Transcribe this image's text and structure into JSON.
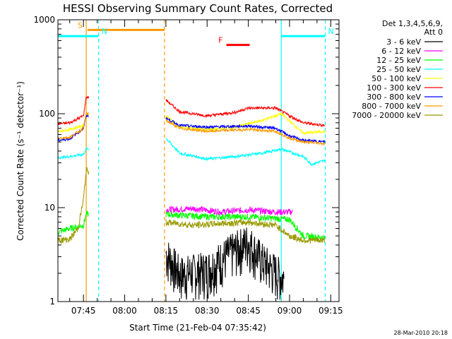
{
  "chart_data": {
    "type": "line",
    "title": "HESSI Observing Summary Count Rates, Corrected",
    "xlabel": "Start Time (21-Feb-04 07:35:42)",
    "ylabel": "Corrected Count Rate (s⁻¹ detector⁻¹)",
    "yscale": "log",
    "xlim": [
      "07:35:42",
      "09:18:00"
    ],
    "ylim": [
      1,
      1000
    ],
    "x_ticks": [
      "07:45",
      "08:00",
      "08:15",
      "08:30",
      "08:45",
      "09:00",
      "09:15"
    ],
    "y_ticks": [
      "1",
      "10",
      "100",
      "1000"
    ],
    "legend_header": [
      "Det 1,3,4,5,6,9,",
      "Att 0"
    ],
    "legend_position": "right",
    "series": [
      {
        "name": "3 - 6 keV",
        "color": "#000000",
        "x": [
          "07:35:42",
          "07:47:00",
          "08:15:00",
          "08:20:00",
          "08:30:00",
          "08:38:00",
          "08:45:00",
          "08:50:00",
          "08:58:00",
          "09:00:00"
        ],
        "values": [
          null,
          null,
          3.0,
          1.8,
          2.0,
          3.0,
          4.0,
          2.5,
          1.6,
          null
        ]
      },
      {
        "name": "6 - 12 keV",
        "color": "#ff00ff",
        "x": [
          "08:15:00",
          "08:25:00",
          "08:35:00",
          "08:45:00",
          "08:55:00",
          "09:01:00"
        ],
        "values": [
          9.5,
          9.8,
          9.0,
          9.5,
          9.0,
          9.0
        ]
      },
      {
        "name": "12 - 25 keV",
        "color": "#00ff00",
        "x": [
          "07:35:42",
          "07:40:00",
          "07:45:00",
          "07:46:00",
          "08:15:00",
          "08:30:00",
          "08:45:00",
          "09:00:00",
          "09:05:00",
          "09:13:00"
        ],
        "values": [
          5.5,
          6.0,
          6.5,
          8.5,
          8.5,
          8.0,
          8.0,
          7.5,
          5.0,
          4.8
        ]
      },
      {
        "name": "25 - 50 keV",
        "color": "#00ffff",
        "x": [
          "07:35:42",
          "07:40:00",
          "07:45:00",
          "07:46:00",
          "08:15:00",
          "08:20:00",
          "08:30:00",
          "08:40:00",
          "08:50:00",
          "08:57:00",
          "09:05:00",
          "09:08:00",
          "09:13:00"
        ],
        "values": [
          34,
          35,
          37,
          42,
          55,
          38,
          33,
          35,
          38,
          42,
          35,
          29,
          32
        ]
      },
      {
        "name": "50 - 100 keV",
        "color": "#ffff00",
        "x": [
          "07:35:42",
          "07:40:00",
          "07:45:00",
          "07:46:00",
          "08:15:00",
          "08:20:00",
          "08:30:00",
          "08:40:00",
          "08:50:00",
          "08:57:00",
          "09:05:00",
          "09:13:00"
        ],
        "values": [
          65,
          68,
          75,
          100,
          95,
          72,
          68,
          72,
          85,
          100,
          62,
          65
        ]
      },
      {
        "name": "100 - 300 keV",
        "color": "#ff0000",
        "x": [
          "07:35:42",
          "07:40:00",
          "07:45:00",
          "07:46:00",
          "08:15:00",
          "08:20:00",
          "08:30:00",
          "08:40:00",
          "08:45:00",
          "08:55:00",
          "09:00:00",
          "09:05:00",
          "09:13:00"
        ],
        "values": [
          78,
          80,
          95,
          150,
          140,
          105,
          95,
          103,
          115,
          115,
          95,
          80,
          75
        ]
      },
      {
        "name": "300 - 800 keV",
        "color": "#0000ff",
        "x": [
          "07:35:42",
          "07:40:00",
          "07:45:00",
          "07:46:00",
          "08:15:00",
          "08:20:00",
          "08:30:00",
          "08:45:00",
          "08:55:00",
          "09:00:00",
          "09:05:00",
          "09:13:00"
        ],
        "values": [
          52,
          54,
          70,
          95,
          90,
          75,
          72,
          74,
          70,
          58,
          52,
          50
        ]
      },
      {
        "name": "800 - 7000 keV",
        "color": "#ff9900",
        "x": [
          "07:35:42",
          "07:40:00",
          "07:45:00",
          "07:46:00",
          "08:15:00",
          "08:20:00",
          "08:30:00",
          "08:45:00",
          "08:55:00",
          "09:00:00",
          "09:05:00",
          "09:13:00"
        ],
        "values": [
          55,
          56,
          70,
          100,
          85,
          70,
          65,
          68,
          65,
          55,
          50,
          48
        ]
      },
      {
        "name": "7000 - 20000 keV",
        "color": "#999900",
        "x": [
          "07:35:42",
          "07:40:00",
          "07:43:00",
          "07:45:00",
          "07:46:00",
          "08:15:00",
          "08:25:00",
          "08:35:00",
          "08:45:00",
          "08:55:00",
          "09:00:00",
          "09:05:00",
          "09:13:00"
        ],
        "values": [
          4.5,
          4.6,
          6.0,
          12,
          25,
          7.0,
          6.5,
          6.8,
          7.0,
          6.5,
          5.0,
          4.5,
          4.5
        ]
      }
    ],
    "flag_bars": [
      {
        "label": "S",
        "color": "#ff9900",
        "start": "07:46:30",
        "end": "08:14:30",
        "level": 780
      },
      {
        "label": "N",
        "color": "#00ffff",
        "start": "07:35:42",
        "end": "07:50:30",
        "level": 670
      },
      {
        "label": "N",
        "color": "#00ffff",
        "start": "08:57:00",
        "end": "09:13:00",
        "level": 670
      },
      {
        "label": "F",
        "color": "#ff0000",
        "start": "08:37:00",
        "end": "08:45:30",
        "level": 540
      }
    ],
    "vertical_markers": [
      {
        "time": "07:46:00",
        "color": "#ff9900",
        "style": "solid"
      },
      {
        "time": "07:50:30",
        "color": "#00ffff",
        "style": "dashed"
      },
      {
        "time": "08:14:30",
        "color": "#ff9900",
        "style": "dashed"
      },
      {
        "time": "08:57:00",
        "color": "#00ffff",
        "style": "solid"
      },
      {
        "time": "09:13:00",
        "color": "#00ffff",
        "style": "dashed"
      }
    ],
    "gap": [
      "07:47:00",
      "08:15:00"
    ],
    "timestamp": "28-Mar-2010 20:18"
  }
}
